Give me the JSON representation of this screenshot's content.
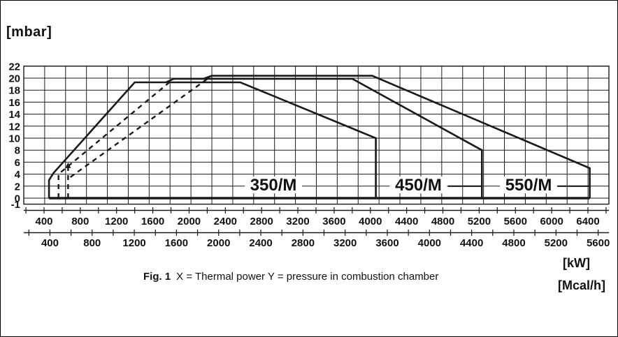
{
  "figure": {
    "y_unit_label": "[mbar]",
    "x_unit_kw": "[kW]",
    "x_unit_mcal": "[Mcal/h]",
    "caption_fig": "Fig. 1",
    "caption_text": "X = Thermal power Y = pressure in combustion chamber"
  },
  "chart_data": {
    "type": "area",
    "title": "",
    "ylabel": "[mbar]",
    "xlabel_primary": "[kW]",
    "xlabel_secondary": "[Mcal/h]",
    "grid": true,
    "y_axis": {
      "unit": "mbar",
      "min": -1,
      "max": 22,
      "ticks": [
        22,
        20,
        18,
        16,
        14,
        12,
        10,
        8,
        6,
        4,
        2,
        0,
        -1
      ]
    },
    "x_axis_kw": {
      "unit": "kW",
      "tick_step_minor": 200,
      "ticks": [
        400,
        800,
        1200,
        1600,
        2000,
        2400,
        2800,
        3200,
        3600,
        4000,
        4400,
        4800,
        5200,
        5600,
        6000,
        6400
      ]
    },
    "x_axis_mcal": {
      "unit": "Mcal/h",
      "kw_per_unit": 1.163,
      "tick_step_minor": 200,
      "ticks": [
        400,
        800,
        1200,
        1600,
        2000,
        2400,
        2800,
        3200,
        3600,
        4000,
        4400,
        4800,
        5200,
        5600
      ]
    },
    "baseline": [
      [
        455,
        0
      ],
      [
        6420,
        0
      ]
    ],
    "series": [
      {
        "name": "350/M",
        "solid": [
          [
            455,
            0
          ],
          [
            455,
            3
          ],
          [
            505,
            4.2
          ],
          [
            1400,
            19.3
          ],
          [
            2565,
            19.3
          ],
          [
            4060,
            10
          ],
          [
            4060,
            0
          ]
        ],
        "dashed": [],
        "label_x": 2930,
        "label_y": 2.2,
        "leader": null
      },
      {
        "name": "450/M",
        "solid": [
          [
            1745,
            19.3
          ],
          [
            1830,
            19.9
          ],
          [
            3800,
            19.9
          ],
          [
            5230,
            8
          ],
          [
            5230,
            0
          ]
        ],
        "dashed": [
          [
            [
              560,
              0
            ],
            [
              560,
              4
            ],
            [
              1830,
              19.9
            ]
          ]
        ],
        "label_x": 4530,
        "label_y": 2.2,
        "leader": [
          4855,
          5230,
          2.0
        ]
      },
      {
        "name": "550/M",
        "solid": [
          [
            2160,
            19.9
          ],
          [
            2250,
            20.4
          ],
          [
            4020,
            20.4
          ],
          [
            6420,
            5
          ],
          [
            6420,
            0
          ]
        ],
        "dashed": [
          [
            [
              665,
              0
            ],
            [
              665,
              5.2
            ]
          ],
          [
            [
              690,
              3.5
            ],
            [
              2250,
              20.4
            ]
          ]
        ],
        "min_marker_arrow": [
          665,
          5.6
        ],
        "label_x": 5745,
        "label_y": 2.2,
        "leader": [
          6040,
          6420,
          2.0
        ]
      }
    ]
  }
}
